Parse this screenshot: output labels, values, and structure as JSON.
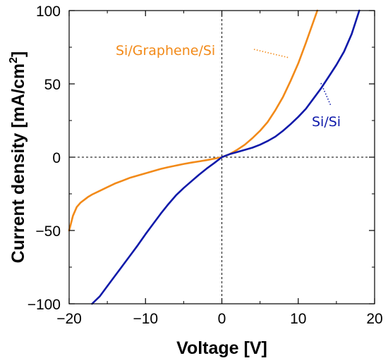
{
  "chart_data": {
    "type": "line",
    "xlabel": "Voltage [V]",
    "ylabel_main": "Current density [mA/cm",
    "ylabel_sup": "2",
    "ylabel_close": "]",
    "xlim": [
      -20,
      20
    ],
    "ylim": [
      -100,
      100
    ],
    "xticks": [
      -20,
      -10,
      0,
      10,
      20
    ],
    "yticks": [
      -100,
      -50,
      0,
      50,
      100
    ],
    "x_tick_labels": [
      "−20",
      "−10",
      "0",
      "10",
      "20"
    ],
    "y_tick_labels": [
      "−100",
      "−50",
      "0",
      "50",
      "100"
    ],
    "grid": false,
    "zero_lines": "dashed",
    "series": [
      {
        "name": "Si/Graphene/Si",
        "color": "#f28a19",
        "x": [
          -20,
          -19.8,
          -19.5,
          -19,
          -18.5,
          -18,
          -17.5,
          -17,
          -16,
          -15,
          -14,
          -13,
          -12,
          -11,
          -10,
          -9,
          -8,
          -7,
          -6,
          -5,
          -4,
          -3,
          -2,
          -1,
          0,
          1,
          2,
          3,
          4,
          5,
          6,
          7,
          8,
          9,
          10,
          11,
          12.5
        ],
        "y": [
          -50,
          -46,
          -40,
          -34,
          -31,
          -29,
          -27,
          -25.5,
          -23,
          -20.5,
          -18,
          -16,
          -14,
          -12.5,
          -11,
          -9.5,
          -8,
          -6.8,
          -5.7,
          -4.6,
          -3.7,
          -2.9,
          -2,
          -1,
          0,
          2,
          5,
          8.5,
          13,
          18,
          24,
          32,
          41,
          52,
          64,
          78,
          100
        ]
      },
      {
        "name": "Si/Si",
        "color": "#0f1aaa",
        "x": [
          -17,
          -16,
          -15,
          -14,
          -13,
          -12,
          -11,
          -10,
          -9,
          -8,
          -7,
          -6,
          -5,
          -4,
          -3,
          -2,
          -1,
          0,
          1,
          2,
          3,
          4,
          5,
          6,
          7,
          8,
          9,
          10,
          11,
          12,
          13,
          14,
          15,
          16,
          17,
          18
        ],
        "y": [
          -100,
          -95,
          -88,
          -81,
          -74,
          -67,
          -60,
          -52.5,
          -45.5,
          -38.5,
          -32,
          -26,
          -21,
          -16.5,
          -12,
          -7.8,
          -4,
          0,
          2,
          3.5,
          5,
          6.5,
          8.5,
          11,
          14,
          18,
          22.5,
          27.5,
          33,
          40,
          47,
          55,
          63,
          72,
          84,
          100
        ]
      }
    ],
    "annotations": [
      {
        "text": "Si/Graphene/Si",
        "series": 0
      },
      {
        "text": "Si/Si",
        "series": 1
      }
    ]
  }
}
